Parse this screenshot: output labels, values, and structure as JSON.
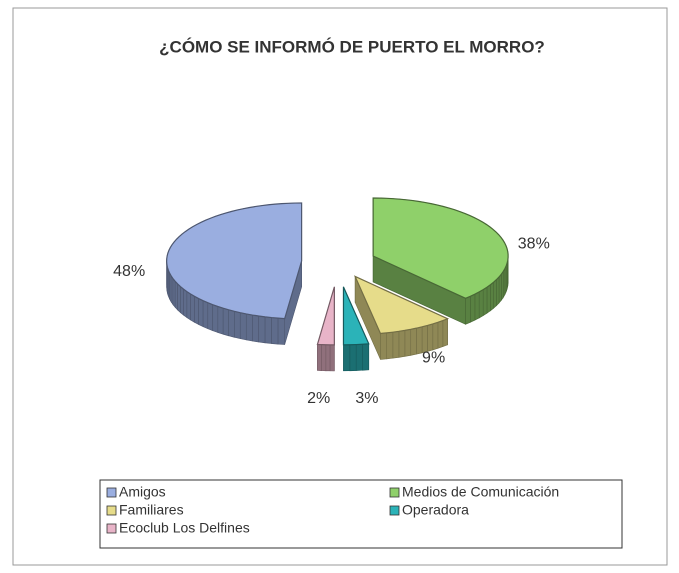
{
  "chart_data": {
    "type": "pie",
    "title": "¿CÓMO SE INFORMÓ DE PUERTO EL MORRO?",
    "categories": [
      "Amigos",
      "Medios de Comunicación",
      "Familiares",
      "Operadora",
      "Ecoclub Los Delfines"
    ],
    "values": [
      48,
      38,
      9,
      3,
      2
    ],
    "value_labels": [
      "48%",
      "38%",
      "9%",
      "3%",
      "2%"
    ],
    "colors": [
      "#9aaee0",
      "#8fd06a",
      "#e6dc8a",
      "#2bb3b8",
      "#e8b4c8"
    ]
  }
}
